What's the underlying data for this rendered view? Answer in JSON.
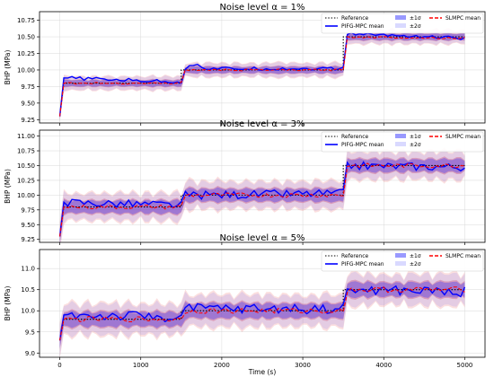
{
  "chart_data": [
    {
      "type": "line",
      "title": "Noise level α = 1%",
      "xlabel": "",
      "ylabel": "BHP (MPa)",
      "xlim": [
        -250,
        5250
      ],
      "ylim": [
        9.2,
        10.88
      ],
      "yticks": [
        9.25,
        9.5,
        9.75,
        10.0,
        10.25,
        10.5,
        10.75
      ],
      "ytick_labels": [
        "9.25",
        "9.50",
        "9.75",
        "10.00",
        "10.25",
        "10.50",
        "10.75"
      ],
      "xticks": [
        0,
        1000,
        2000,
        3000,
        4000,
        5000
      ],
      "xtick_labels": [],
      "grid": true,
      "legend_position": "top-right",
      "noise_amp": 0.025,
      "band_sigma": [
        0.045,
        0.09
      ],
      "series": [
        {
          "name": "Reference",
          "color": "#000000",
          "style": "dotted",
          "x": [
            0,
            50,
            1500,
            1500,
            3500,
            3500,
            5000
          ],
          "y": [
            9.3,
            9.8,
            9.8,
            10.0,
            10.0,
            10.5,
            10.5
          ]
        },
        {
          "name": "PIFG-MPC mean",
          "color": "#0000ff",
          "style": "solid",
          "x": [
            0,
            50,
            1500,
            1550,
            1700,
            1800,
            3500,
            3550,
            5000
          ],
          "y": [
            9.3,
            9.88,
            9.82,
            10.02,
            10.1,
            10.02,
            10.02,
            10.55,
            10.48
          ]
        },
        {
          "name": "SLMPC mean",
          "color": "#ff0000",
          "style": "dashed",
          "x": [
            0,
            50,
            1500,
            1500,
            3500,
            3500,
            5000
          ],
          "y": [
            9.3,
            9.8,
            9.8,
            10.0,
            10.0,
            10.5,
            10.48
          ]
        }
      ],
      "bands": [
        {
          "name": "±1σ",
          "color": "#3333ff",
          "opacity": 0.35
        },
        {
          "name": "±2σ",
          "color": "#6666ff",
          "opacity": 0.15
        }
      ]
    },
    {
      "type": "line",
      "title": "Noise level α = 3%",
      "xlabel": "",
      "ylabel": "BHP (MPa)",
      "xlim": [
        -250,
        5250
      ],
      "ylim": [
        9.2,
        11.1
      ],
      "yticks": [
        9.25,
        9.5,
        9.75,
        10.0,
        10.25,
        10.5,
        10.75,
        11.0
      ],
      "ytick_labels": [
        "9.25",
        "9.50",
        "9.75",
        "10.00",
        "10.25",
        "10.50",
        "10.75",
        "11.00"
      ],
      "xticks": [
        0,
        1000,
        2000,
        3000,
        4000,
        5000
      ],
      "xtick_labels": [],
      "grid": true,
      "legend_position": "top-right",
      "noise_amp": 0.07,
      "band_sigma": [
        0.1,
        0.2
      ],
      "series": [
        {
          "name": "Reference",
          "color": "#000000",
          "style": "dotted",
          "x": [
            0,
            50,
            1500,
            1500,
            3500,
            3500,
            5000
          ],
          "y": [
            9.3,
            9.8,
            9.8,
            10.0,
            10.0,
            10.5,
            10.5
          ]
        },
        {
          "name": "PIFG-MPC mean",
          "color": "#0000ff",
          "style": "solid",
          "x": [
            0,
            50,
            1500,
            1550,
            3500,
            3550,
            5000
          ],
          "y": [
            9.3,
            9.88,
            9.83,
            10.0,
            10.03,
            10.5,
            10.48
          ]
        },
        {
          "name": "SLMPC mean",
          "color": "#ff0000",
          "style": "dashed",
          "x": [
            0,
            50,
            1500,
            1500,
            3500,
            3500,
            5000
          ],
          "y": [
            9.3,
            9.8,
            9.8,
            10.0,
            10.0,
            10.5,
            10.5
          ]
        }
      ],
      "bands": [
        {
          "name": "±1σ",
          "color": "#3333ff",
          "opacity": 0.35
        },
        {
          "name": "±2σ",
          "color": "#6666ff",
          "opacity": 0.15
        }
      ]
    },
    {
      "type": "line",
      "title": "Noise level α = 5%",
      "xlabel": "Time (s)",
      "ylabel": "BHP (MPa)",
      "xlim": [
        -250,
        5250
      ],
      "ylim": [
        8.9,
        11.45
      ],
      "yticks": [
        9.0,
        9.5,
        10.0,
        10.5,
        11.0
      ],
      "ytick_labels": [
        "9.0",
        "9.5",
        "10.0",
        "10.5",
        "11.0"
      ],
      "xticks": [
        0,
        1000,
        2000,
        3000,
        4000,
        5000
      ],
      "xtick_labels": [
        "0",
        "1000",
        "2000",
        "3000",
        "4000",
        "5000"
      ],
      "grid": true,
      "legend_position": "top-right",
      "noise_amp": 0.12,
      "band_sigma": [
        0.16,
        0.32
      ],
      "series": [
        {
          "name": "Reference",
          "color": "#000000",
          "style": "dotted",
          "x": [
            0,
            50,
            1500,
            1500,
            3500,
            3500,
            5000
          ],
          "y": [
            9.3,
            9.8,
            9.8,
            10.0,
            10.0,
            10.5,
            10.5
          ]
        },
        {
          "name": "PIFG-MPC mean",
          "color": "#0000ff",
          "style": "solid",
          "x": [
            0,
            50,
            1500,
            1550,
            3500,
            3550,
            5000
          ],
          "y": [
            9.3,
            9.9,
            9.85,
            10.05,
            10.05,
            10.5,
            10.45
          ]
        },
        {
          "name": "SLMPC mean",
          "color": "#ff0000",
          "style": "dashed",
          "x": [
            0,
            50,
            1500,
            1500,
            3500,
            3500,
            5000
          ],
          "y": [
            9.3,
            9.8,
            9.8,
            10.0,
            10.0,
            10.5,
            10.5
          ]
        }
      ],
      "bands": [
        {
          "name": "±1σ",
          "color": "#3333ff",
          "opacity": 0.35
        },
        {
          "name": "±2σ",
          "color": "#6666ff",
          "opacity": 0.15
        }
      ]
    }
  ]
}
